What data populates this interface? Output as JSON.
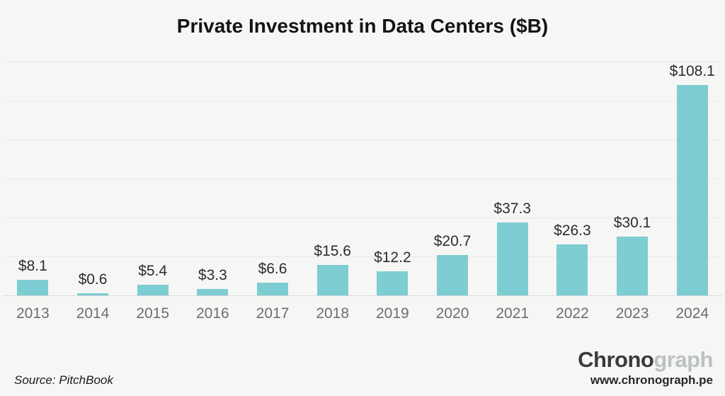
{
  "page": {
    "background_color": "#f6f6f4"
  },
  "title": "Private Investment in Data Centers ($B)",
  "chart_data": {
    "type": "bar",
    "title": "Private Investment in Data Centers ($B)",
    "categories": [
      "2013",
      "2014",
      "2015",
      "2016",
      "2017",
      "2018",
      "2019",
      "2020",
      "2021",
      "2022",
      "2023",
      "2024"
    ],
    "values": [
      8.1,
      0.6,
      5.4,
      3.3,
      6.6,
      15.6,
      12.2,
      20.7,
      37.3,
      26.3,
      30.1,
      108.1
    ],
    "labels": [
      "$8.1",
      "$0.6",
      "$5.4",
      "$3.3",
      "$6.6",
      "$15.6",
      "$12.2",
      "$20.7",
      "$37.3",
      "$26.3",
      "$30.1",
      "$108.1"
    ],
    "xlabel": "",
    "ylabel": "",
    "ylim": [
      0,
      120
    ],
    "grid_step": 20,
    "grid": true,
    "legend": false,
    "bar_color": "#7ecdd3",
    "gridline_color": "#eaeae8",
    "baseline_color": "#d8d8d6"
  },
  "footer": {
    "source": "Source: PitchBook",
    "logo_primary": "Chrono",
    "logo_secondary": "graph",
    "website": "www.chronograph.pe"
  },
  "colors": {
    "title_text": "#141414",
    "value_label_text": "#2d2d2d",
    "year_label_text": "#6e6e6e",
    "logo_primary": "#3b3b3b",
    "logo_secondary": "#bcc1c1"
  }
}
